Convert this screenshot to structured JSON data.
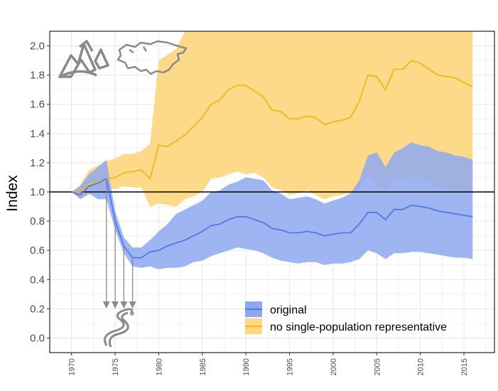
{
  "chart_data": {
    "type": "line",
    "xlabel": "",
    "ylabel": "Index",
    "xlim": [
      1967.5,
      2018.5
    ],
    "ylim": [
      -0.1,
      2.1
    ],
    "x_ticks": [
      1970,
      1975,
      1980,
      1985,
      1990,
      1995,
      2000,
      2005,
      2010,
      2015
    ],
    "x_tick_labels": [
      "1970",
      "1975",
      "1980",
      "1985",
      "1990",
      "1995",
      "2000",
      "2005",
      "2010",
      "2015"
    ],
    "y_ticks": [
      0.0,
      0.2,
      0.4,
      0.6,
      0.8,
      1.0,
      1.2,
      1.4,
      1.6,
      1.8,
      2.0
    ],
    "y_tick_labels": [
      "0.0",
      "0.2",
      "0.4",
      "0.6",
      "0.8",
      "1.0",
      "1.2",
      "1.4",
      "1.6",
      "1.8",
      "2.0"
    ],
    "reference_line": 1.0,
    "grid": true,
    "legend_position": "bottom-right",
    "colors": {
      "original": "#4f78e8",
      "original_band": "#8ea8f0",
      "nosingle": "#f3b818",
      "nosingle_band": "#fdd884",
      "overlap_band": "#9aa0c2",
      "reference": "#000000",
      "icons": "#8a8a8a"
    },
    "icons": [
      "mountains-icon",
      "greenland-map-icon",
      "snake-icon"
    ],
    "icon_arrows_x": [
      1974,
      1975,
      1976,
      1977
    ],
    "x": [
      1970,
      1971,
      1972,
      1973,
      1974,
      1975,
      1976,
      1977,
      1978,
      1979,
      1980,
      1981,
      1982,
      1983,
      1984,
      1985,
      1986,
      1987,
      1988,
      1989,
      1990,
      1991,
      1992,
      1993,
      1994,
      1995,
      1996,
      1997,
      1998,
      1999,
      2000,
      2001,
      2002,
      2003,
      2004,
      2005,
      2006,
      2007,
      2008,
      2009,
      2010,
      2011,
      2012,
      2013,
      2014,
      2015,
      2016
    ],
    "series": [
      {
        "name": "original",
        "values": [
          1.0,
          0.98,
          1.04,
          1.06,
          1.09,
          0.8,
          0.63,
          0.55,
          0.55,
          0.59,
          0.6,
          0.63,
          0.65,
          0.67,
          0.7,
          0.73,
          0.77,
          0.78,
          0.81,
          0.83,
          0.83,
          0.81,
          0.79,
          0.75,
          0.74,
          0.72,
          0.72,
          0.73,
          0.72,
          0.7,
          0.71,
          0.72,
          0.72,
          0.78,
          0.86,
          0.86,
          0.81,
          0.88,
          0.88,
          0.91,
          0.9,
          0.89,
          0.87,
          0.86,
          0.85,
          0.84,
          0.83
        ],
        "lower": [
          1.0,
          0.95,
          0.99,
          0.95,
          0.95,
          0.74,
          0.58,
          0.49,
          0.48,
          0.49,
          0.47,
          0.48,
          0.48,
          0.49,
          0.52,
          0.53,
          0.56,
          0.58,
          0.6,
          0.62,
          0.61,
          0.6,
          0.58,
          0.55,
          0.53,
          0.52,
          0.51,
          0.52,
          0.52,
          0.5,
          0.51,
          0.51,
          0.52,
          0.54,
          0.6,
          0.58,
          0.54,
          0.58,
          0.58,
          0.59,
          0.59,
          0.58,
          0.57,
          0.56,
          0.55,
          0.55,
          0.54
        ],
        "upper": [
          1.0,
          1.04,
          1.12,
          1.17,
          1.22,
          0.87,
          0.69,
          0.62,
          0.62,
          0.67,
          0.73,
          0.78,
          0.85,
          0.88,
          0.91,
          0.94,
          1.0,
          1.01,
          1.05,
          1.07,
          1.1,
          1.09,
          1.08,
          1.01,
          0.99,
          0.95,
          0.96,
          0.97,
          0.95,
          0.92,
          0.94,
          0.96,
          0.99,
          1.08,
          1.25,
          1.27,
          1.17,
          1.27,
          1.3,
          1.34,
          1.32,
          1.31,
          1.28,
          1.27,
          1.25,
          1.24,
          1.22
        ]
      },
      {
        "name": "no single-population representative",
        "values": [
          1.0,
          1.0,
          1.05,
          1.07,
          1.09,
          1.1,
          1.13,
          1.14,
          1.15,
          1.09,
          1.32,
          1.31,
          1.35,
          1.39,
          1.45,
          1.51,
          1.6,
          1.63,
          1.7,
          1.73,
          1.73,
          1.69,
          1.65,
          1.56,
          1.55,
          1.5,
          1.5,
          1.52,
          1.51,
          1.46,
          1.48,
          1.49,
          1.51,
          1.62,
          1.8,
          1.79,
          1.7,
          1.84,
          1.84,
          1.9,
          1.88,
          1.84,
          1.8,
          1.79,
          1.78,
          1.75,
          1.72
        ],
        "lower": [
          1.0,
          0.95,
          0.98,
          1.0,
          1.02,
          1.02,
          1.04,
          1.03,
          1.03,
          0.9,
          0.92,
          0.91,
          0.9,
          0.95,
          0.97,
          1.0,
          1.09,
          1.1,
          1.12,
          1.14,
          1.12,
          1.13,
          1.1,
          1.03,
          1.01,
          0.98,
          0.99,
          1.01,
          0.98,
          0.95,
          0.97,
          0.98,
          0.99,
          1.02,
          1.12,
          1.07,
          1.02,
          1.09,
          1.08,
          1.12,
          1.1,
          1.07,
          1.03,
          1.02,
          1.01,
          1.0,
          0.99
        ],
        "upper": [
          1.0,
          1.05,
          1.15,
          1.18,
          1.21,
          1.23,
          1.26,
          1.26,
          1.28,
          1.33,
          1.9,
          1.94,
          1.98,
          2.1,
          2.1,
          2.1,
          2.1,
          2.1,
          2.1,
          2.1,
          2.1,
          2.1,
          2.1,
          2.1,
          2.1,
          2.1,
          2.1,
          2.1,
          2.1,
          2.1,
          2.1,
          2.1,
          2.1,
          2.1,
          2.1,
          2.1,
          2.1,
          2.1,
          2.1,
          2.1,
          2.1,
          2.1,
          2.1,
          2.1,
          2.1,
          2.1,
          2.1
        ]
      }
    ]
  }
}
